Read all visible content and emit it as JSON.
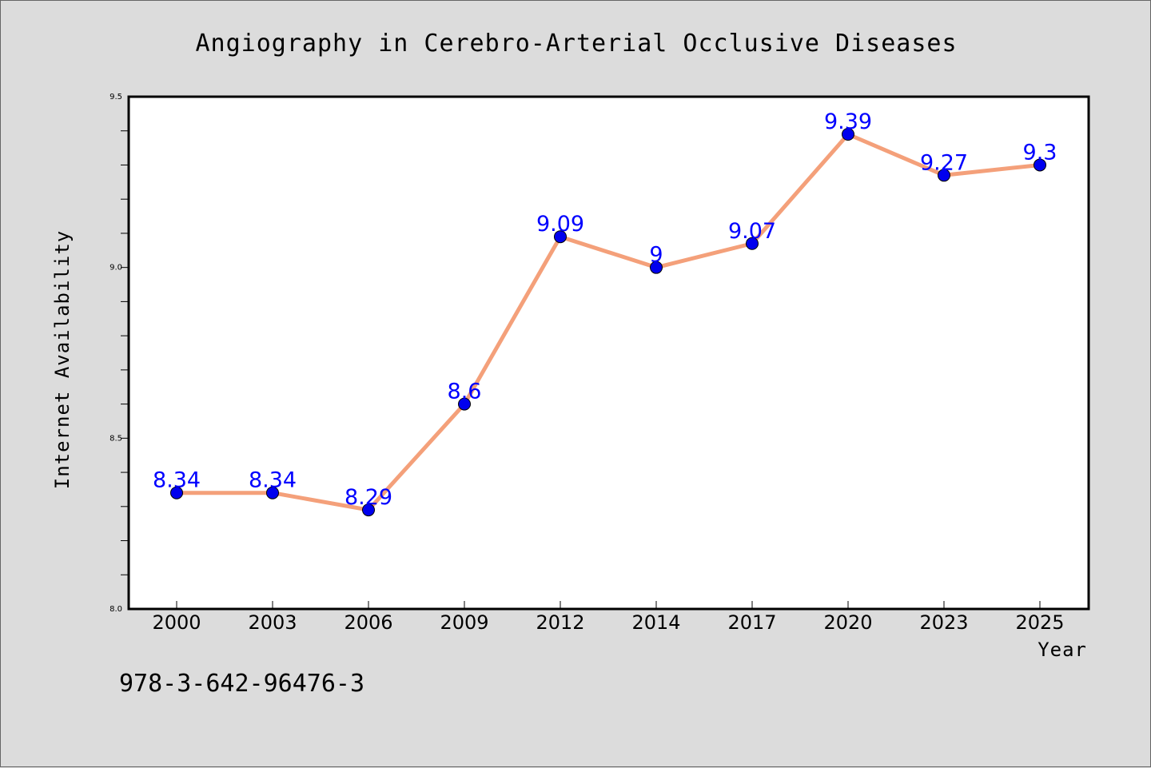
{
  "chart_data": {
    "type": "line",
    "title": "Angiography in Cerebro-Arterial Occlusive Diseases",
    "xlabel": "Year",
    "ylabel": "Internet Availability",
    "categories": [
      "2000",
      "2003",
      "2006",
      "2009",
      "2012",
      "2014",
      "2017",
      "2020",
      "2023",
      "2025"
    ],
    "series": [
      {
        "values": [
          8.34,
          8.34,
          8.29,
          8.6,
          9.09,
          9.0,
          9.07,
          9.39,
          9.27,
          9.3
        ],
        "labels": [
          "8.34",
          "8.34",
          "8.29",
          "8.6",
          "9.09",
          "9",
          "9.07",
          "9.39",
          "9.27",
          "9.3"
        ],
        "line_color": "#f4a07a",
        "marker_color": "#0000ee",
        "label_color": "#0000ff"
      }
    ],
    "ylim": [
      8.0,
      9.5
    ],
    "yticks": [
      "8.0",
      "8.5",
      "9.0",
      "9.5"
    ],
    "ytick_values": [
      8.0,
      8.5,
      9.0,
      9.5
    ],
    "grid": false,
    "legend": "none"
  },
  "footer": {
    "isbn": "978-3-642-96476-3"
  },
  "colors": {
    "background": "#dcdcdc",
    "plot_area": "#ffffff"
  }
}
